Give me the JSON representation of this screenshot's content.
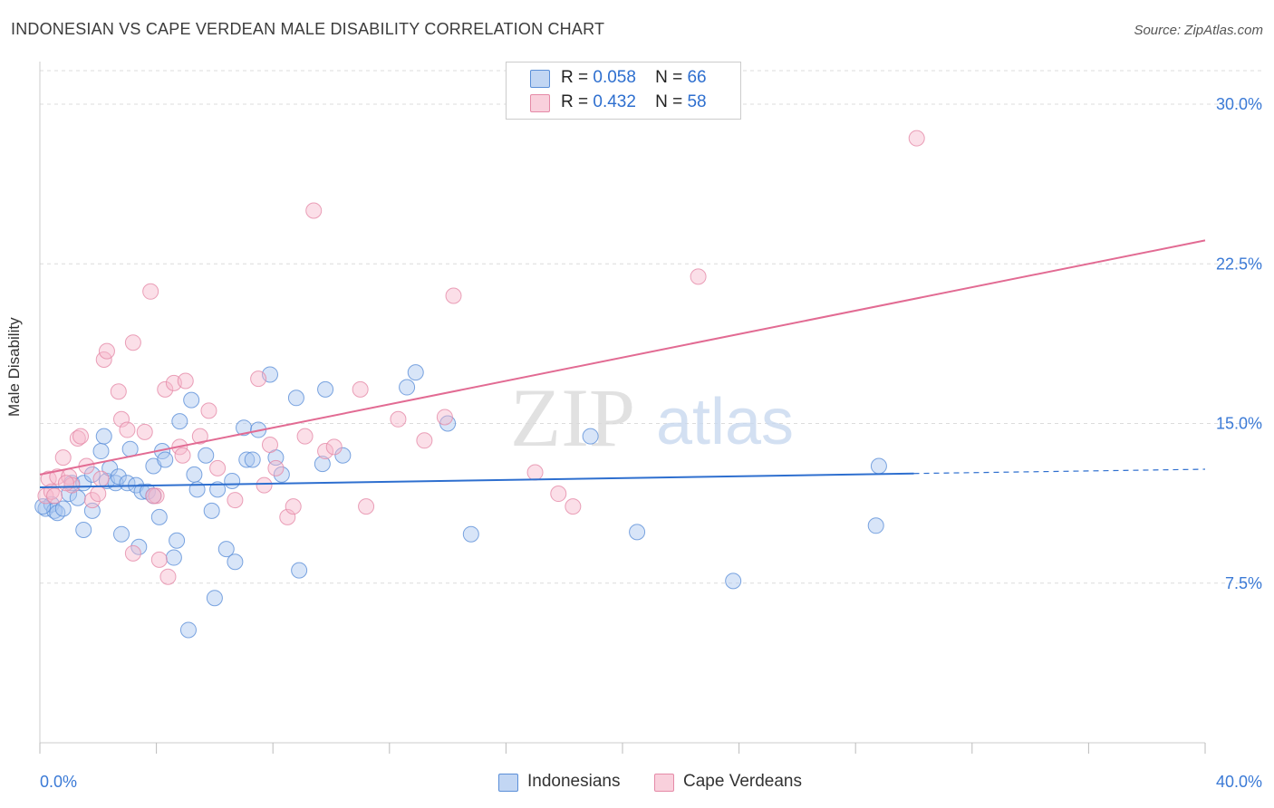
{
  "title": "INDONESIAN VS CAPE VERDEAN MALE DISABILITY CORRELATION CHART",
  "source": "Source: ZipAtlas.com",
  "watermark": {
    "zip": "ZIP",
    "atlas": "atlas"
  },
  "legend": {
    "r_label": "R =",
    "n_label": "N =",
    "series": [
      {
        "name": "Indonesians",
        "r": "0.058",
        "n": "66",
        "color": "#a9c6ef",
        "edge": "#5b8fd8",
        "line": "#2e6fcf"
      },
      {
        "name": "Cape Verdeans",
        "r": "0.432",
        "n": "58",
        "color": "#f6b8cb",
        "edge": "#e58aa7",
        "line": "#e26b93"
      }
    ]
  },
  "chart_data": {
    "type": "scatter",
    "title": "INDONESIAN VS CAPE VERDEAN MALE DISABILITY CORRELATION CHART",
    "xlabel": "",
    "ylabel": "Male Disability",
    "xlim": [
      0,
      40
    ],
    "ylim": [
      0,
      32
    ],
    "x_tick_labels": [
      "0.0%",
      "40.0%"
    ],
    "y_ticks": [
      7.5,
      15.0,
      22.5,
      30.0
    ],
    "y_tick_labels": [
      "7.5%",
      "15.0%",
      "22.5%",
      "30.0%"
    ],
    "grid": true,
    "series": [
      {
        "name": "Indonesians",
        "trend": {
          "x0": 0,
          "y0": 12.0,
          "x1": 30,
          "y1": 12.65,
          "dash_to": 40,
          "dash_y": 12.85
        },
        "points": [
          [
            0.2,
            11.0
          ],
          [
            0.4,
            11.2
          ],
          [
            0.5,
            10.9
          ],
          [
            0.6,
            10.8
          ],
          [
            0.8,
            11.0
          ],
          [
            1.0,
            11.7
          ],
          [
            1.1,
            12.2
          ],
          [
            1.3,
            11.5
          ],
          [
            1.5,
            12.2
          ],
          [
            1.5,
            10.0
          ],
          [
            1.8,
            10.9
          ],
          [
            1.8,
            12.6
          ],
          [
            2.1,
            13.7
          ],
          [
            2.2,
            14.4
          ],
          [
            2.3,
            12.3
          ],
          [
            2.4,
            12.9
          ],
          [
            2.6,
            12.2
          ],
          [
            2.7,
            12.5
          ],
          [
            2.8,
            9.8
          ],
          [
            3.0,
            12.2
          ],
          [
            3.1,
            13.8
          ],
          [
            3.3,
            12.1
          ],
          [
            3.4,
            9.2
          ],
          [
            3.5,
            11.8
          ],
          [
            3.7,
            11.8
          ],
          [
            3.9,
            11.6
          ],
          [
            3.9,
            13.0
          ],
          [
            4.1,
            10.6
          ],
          [
            4.2,
            13.7
          ],
          [
            4.3,
            13.3
          ],
          [
            4.6,
            8.7
          ],
          [
            4.7,
            9.5
          ],
          [
            4.8,
            15.1
          ],
          [
            5.1,
            5.3
          ],
          [
            5.2,
            16.1
          ],
          [
            5.3,
            12.6
          ],
          [
            5.4,
            11.9
          ],
          [
            5.7,
            13.5
          ],
          [
            5.9,
            10.9
          ],
          [
            6.0,
            6.8
          ],
          [
            6.1,
            11.9
          ],
          [
            6.4,
            9.1
          ],
          [
            6.6,
            12.3
          ],
          [
            6.7,
            8.5
          ],
          [
            7.0,
            14.8
          ],
          [
            7.1,
            13.3
          ],
          [
            7.3,
            13.3
          ],
          [
            7.5,
            14.7
          ],
          [
            7.9,
            17.3
          ],
          [
            8.1,
            13.4
          ],
          [
            8.3,
            12.6
          ],
          [
            8.8,
            16.2
          ],
          [
            8.9,
            8.1
          ],
          [
            9.7,
            13.1
          ],
          [
            9.8,
            16.6
          ],
          [
            10.4,
            13.5
          ],
          [
            12.6,
            16.7
          ],
          [
            12.9,
            17.4
          ],
          [
            14.0,
            15.0
          ],
          [
            14.8,
            9.8
          ],
          [
            18.9,
            14.4
          ],
          [
            20.5,
            9.9
          ],
          [
            23.8,
            7.6
          ],
          [
            28.7,
            10.2
          ],
          [
            28.8,
            13.0
          ],
          [
            0.1,
            11.1
          ]
        ]
      },
      {
        "name": "Cape Verdeans",
        "trend": {
          "x0": 0,
          "y0": 12.6,
          "x1": 40,
          "y1": 23.6
        },
        "points": [
          [
            0.2,
            11.6
          ],
          [
            0.3,
            12.4
          ],
          [
            0.4,
            11.8
          ],
          [
            0.5,
            11.6
          ],
          [
            0.6,
            12.5
          ],
          [
            0.8,
            13.4
          ],
          [
            1.0,
            12.5
          ],
          [
            1.1,
            12.1
          ],
          [
            1.3,
            14.3
          ],
          [
            1.6,
            13.0
          ],
          [
            1.8,
            11.4
          ],
          [
            2.0,
            11.7
          ],
          [
            2.1,
            12.4
          ],
          [
            2.2,
            18.0
          ],
          [
            2.3,
            18.4
          ],
          [
            2.7,
            16.5
          ],
          [
            2.8,
            15.2
          ],
          [
            3.0,
            14.7
          ],
          [
            3.2,
            18.8
          ],
          [
            3.2,
            8.9
          ],
          [
            3.6,
            14.6
          ],
          [
            3.8,
            21.2
          ],
          [
            4.0,
            11.6
          ],
          [
            4.1,
            8.6
          ],
          [
            4.3,
            16.6
          ],
          [
            4.4,
            7.8
          ],
          [
            4.6,
            16.9
          ],
          [
            4.8,
            13.9
          ],
          [
            4.9,
            13.5
          ],
          [
            5.0,
            17.0
          ],
          [
            5.5,
            14.4
          ],
          [
            5.8,
            15.6
          ],
          [
            6.1,
            12.9
          ],
          [
            6.7,
            11.4
          ],
          [
            7.5,
            17.1
          ],
          [
            7.7,
            12.1
          ],
          [
            7.9,
            14.0
          ],
          [
            8.1,
            12.9
          ],
          [
            8.5,
            10.6
          ],
          [
            8.7,
            11.1
          ],
          [
            9.1,
            14.4
          ],
          [
            9.4,
            25.0
          ],
          [
            9.8,
            13.7
          ],
          [
            10.1,
            13.9
          ],
          [
            11.0,
            16.6
          ],
          [
            11.2,
            11.1
          ],
          [
            12.3,
            15.2
          ],
          [
            13.2,
            14.2
          ],
          [
            13.9,
            15.3
          ],
          [
            14.2,
            21.0
          ],
          [
            17.0,
            12.7
          ],
          [
            17.8,
            11.7
          ],
          [
            18.3,
            11.1
          ],
          [
            22.6,
            21.9
          ],
          [
            30.1,
            28.4
          ],
          [
            1.4,
            14.4
          ],
          [
            0.9,
            12.2
          ],
          [
            3.9,
            11.6
          ]
        ]
      }
    ]
  }
}
